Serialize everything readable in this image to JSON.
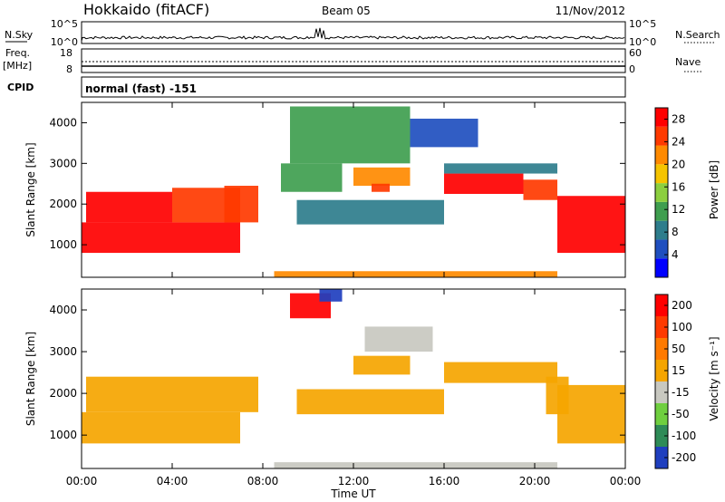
{
  "header": {
    "station": "Hokkaido (fitACF)",
    "beam": "Beam 05",
    "date": "11/Nov/2012"
  },
  "panels": {
    "nsky": {
      "label": "N.Sky",
      "tick_top": "10^5",
      "tick_bottom": "10^0",
      "right_label": "N.Search",
      "right_tick_top": "10^5",
      "right_tick_bottom": "10^0"
    },
    "freq": {
      "label_top": "Freq.",
      "label_bottom": "[MHz]",
      "tick_top": "18",
      "tick_bottom": "8",
      "right_label": "Nave",
      "right_tick_top": "60",
      "right_tick_bottom": "0"
    },
    "cpid": {
      "label": "CPID",
      "text": "normal (fast) -151"
    }
  },
  "chart_data": [
    {
      "type": "heatmap",
      "name": "power",
      "ylabel": "Slant Range [km]",
      "yticks": [
        "1000",
        "2000",
        "3000",
        "4000"
      ],
      "ylim": [
        200,
        4500
      ],
      "xlim": [
        0,
        24
      ],
      "colorbar": {
        "label": "Power [dB]",
        "ticks": [
          "4",
          "8",
          "12",
          "16",
          "20",
          "24",
          "28"
        ],
        "range": [
          0,
          30
        ],
        "colors": [
          "#0000ff",
          "#1f4fbf",
          "#2e7d8c",
          "#3f9e4f",
          "#8ccf3f",
          "#f5c400",
          "#ff8a00",
          "#ff3a00",
          "#ff0000"
        ]
      },
      "regions": [
        {
          "t0": 0.0,
          "t1": 7.0,
          "r0": 800,
          "r1": 1550,
          "v": 29
        },
        {
          "t0": 0.2,
          "t1": 4.0,
          "r0": 1550,
          "r1": 2300,
          "v": 27
        },
        {
          "t0": 4.0,
          "t1": 7.0,
          "r0": 1550,
          "r1": 2400,
          "v": 26
        },
        {
          "t0": 6.3,
          "t1": 7.8,
          "r0": 1550,
          "r1": 2450,
          "v": 24
        },
        {
          "t0": 8.8,
          "t1": 11.5,
          "r0": 2300,
          "r1": 3000,
          "v": 10
        },
        {
          "t0": 9.5,
          "t1": 16.0,
          "r0": 1500,
          "r1": 2100,
          "v": 8
        },
        {
          "t0": 12.0,
          "t1": 14.5,
          "r0": 2450,
          "r1": 2900,
          "v": 20
        },
        {
          "t0": 12.8,
          "t1": 13.6,
          "r0": 2300,
          "r1": 2500,
          "v": 26
        },
        {
          "t0": 16.0,
          "t1": 19.5,
          "r0": 2250,
          "r1": 2750,
          "v": 27
        },
        {
          "t0": 19.5,
          "t1": 21.0,
          "r0": 2100,
          "r1": 2600,
          "v": 26
        },
        {
          "t0": 16.0,
          "t1": 21.0,
          "r0": 2750,
          "r1": 3000,
          "v": 8
        },
        {
          "t0": 21.0,
          "t1": 24.0,
          "r0": 800,
          "r1": 2200,
          "v": 29
        },
        {
          "t0": 8.5,
          "t1": 21.0,
          "r0": 200,
          "r1": 350,
          "v": 20
        },
        {
          "t0": 9.2,
          "t1": 14.5,
          "r0": 3000,
          "r1": 4400,
          "v": 10
        },
        {
          "t0": 14.5,
          "t1": 17.5,
          "r0": 3400,
          "r1": 4100,
          "v": 6
        }
      ]
    },
    {
      "type": "heatmap",
      "name": "velocity",
      "ylabel": "Slant Range [km]",
      "yticks": [
        "1000",
        "2000",
        "3000",
        "4000"
      ],
      "ylim": [
        200,
        4500
      ],
      "xlim": [
        0,
        24
      ],
      "xticks": [
        "00:00",
        "04:00",
        "08:00",
        "12:00",
        "16:00",
        "20:00",
        "00:00"
      ],
      "xlabel": "Time UT",
      "colorbar": {
        "label": "Velocity [m s⁻¹]",
        "ticks": [
          "200",
          "100",
          "50",
          "15",
          "-15",
          "-50",
          "-100",
          "-200"
        ],
        "range": [
          -250,
          250
        ],
        "colors": [
          "#1f3fbf",
          "#2e8b57",
          "#6fcf3f",
          "#c8c8c0",
          "#f5a500",
          "#ff7a00",
          "#ff3a00",
          "#ff0000"
        ]
      },
      "regions": [
        {
          "t0": 0.0,
          "t1": 7.0,
          "r0": 800,
          "r1": 1550,
          "v": 0
        },
        {
          "t0": 0.2,
          "t1": 7.8,
          "r0": 1550,
          "r1": 2400,
          "v": 0
        },
        {
          "t0": 9.5,
          "t1": 16.0,
          "r0": 1500,
          "r1": 2100,
          "v": 0
        },
        {
          "t0": 12.0,
          "t1": 14.5,
          "r0": 2450,
          "r1": 2900,
          "v": 0
        },
        {
          "t0": 16.0,
          "t1": 21.0,
          "r0": 2250,
          "r1": 2750,
          "v": 0
        },
        {
          "t0": 20.5,
          "t1": 21.5,
          "r0": 1500,
          "r1": 2400,
          "v": 40
        },
        {
          "t0": 21.0,
          "t1": 24.0,
          "r0": 800,
          "r1": 2200,
          "v": 0
        },
        {
          "t0": 8.5,
          "t1": 21.0,
          "r0": 200,
          "r1": 350,
          "v": -40
        },
        {
          "t0": 9.2,
          "t1": 11.0,
          "r0": 3800,
          "r1": 4400,
          "v": 220
        },
        {
          "t0": 10.5,
          "t1": 11.5,
          "r0": 4200,
          "r1": 4500,
          "v": -220
        },
        {
          "t0": 12.5,
          "t1": 15.5,
          "r0": 3000,
          "r1": 3600,
          "v": -60
        }
      ]
    }
  ]
}
